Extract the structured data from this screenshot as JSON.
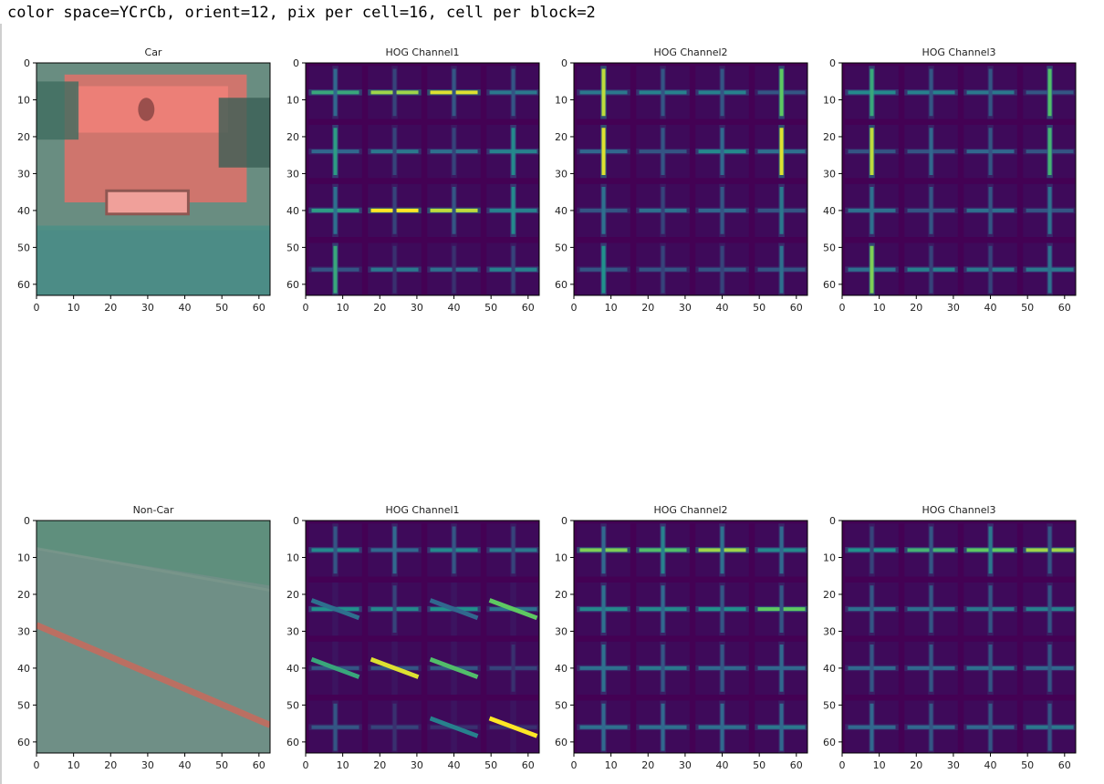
{
  "header": {
    "params_text": "color space=YCrCb, orient=12, pix per cell=16, cell per block=2"
  },
  "colors": {
    "viridis_dark": "#440154",
    "viridis_bg": "#3e0b5b",
    "viridis_blue": "#31688e",
    "viridis_teal": "#21918c",
    "viridis_green": "#5ec962",
    "viridis_yellow": "#fde725",
    "car_body": "#e2716a",
    "car_road": "#4f8f85",
    "noncar_bg": "#6f8f86",
    "noncar_line": "#c96a5c"
  },
  "chart_data": [
    {
      "type": "heatmap",
      "title": "Car",
      "image": "car-photo",
      "xlim": [
        0,
        63
      ],
      "ylim": [
        63,
        0
      ],
      "xticks": [
        0,
        10,
        20,
        30,
        40,
        50,
        60
      ],
      "yticks": [
        0,
        10,
        20,
        30,
        40,
        50,
        60
      ]
    },
    {
      "type": "heatmap",
      "title": "HOG Channel1",
      "image": "hog",
      "xlim": [
        0,
        63
      ],
      "ylim": [
        63,
        0
      ],
      "xticks": [
        0,
        10,
        20,
        30,
        40,
        50,
        60
      ],
      "yticks": [
        0,
        10,
        20,
        30,
        40,
        50,
        60
      ],
      "cells": [
        {
          "h": 0.6,
          "v": 0.25
        },
        {
          "h": 0.85,
          "v": 0.15
        },
        {
          "h": 0.95,
          "v": 0.2
        },
        {
          "h": 0.35,
          "v": 0.2
        },
        {
          "h": 0.25,
          "v": 0.55
        },
        {
          "h": 0.35,
          "v": 0.15
        },
        {
          "h": 0.3,
          "v": 0.15
        },
        {
          "h": 0.4,
          "v": 0.45
        },
        {
          "h": 0.55,
          "v": 0.3
        },
        {
          "h": 1.0,
          "v": 0.15
        },
        {
          "h": 0.9,
          "v": 0.2
        },
        {
          "h": 0.4,
          "v": 0.45
        },
        {
          "h": 0.2,
          "v": 0.6
        },
        {
          "h": 0.35,
          "v": 0.1
        },
        {
          "h": 0.3,
          "v": 0.1
        },
        {
          "h": 0.4,
          "v": 0.15
        }
      ]
    },
    {
      "type": "heatmap",
      "title": "HOG Channel2",
      "image": "hog",
      "xlim": [
        0,
        63
      ],
      "ylim": [
        63,
        0
      ],
      "xticks": [
        0,
        10,
        20,
        30,
        40,
        50,
        60
      ],
      "yticks": [
        0,
        10,
        20,
        30,
        40,
        50,
        60
      ],
      "cells": [
        {
          "h": 0.35,
          "v": 0.9
        },
        {
          "h": 0.4,
          "v": 0.2
        },
        {
          "h": 0.4,
          "v": 0.2
        },
        {
          "h": 0.2,
          "v": 0.75
        },
        {
          "h": 0.25,
          "v": 0.95
        },
        {
          "h": 0.2,
          "v": 0.2
        },
        {
          "h": 0.45,
          "v": 0.25
        },
        {
          "h": 0.3,
          "v": 0.95
        },
        {
          "h": 0.2,
          "v": 0.3
        },
        {
          "h": 0.3,
          "v": 0.15
        },
        {
          "h": 0.25,
          "v": 0.2
        },
        {
          "h": 0.2,
          "v": 0.35
        },
        {
          "h": 0.2,
          "v": 0.5
        },
        {
          "h": 0.2,
          "v": 0.15
        },
        {
          "h": 0.2,
          "v": 0.15
        },
        {
          "h": 0.2,
          "v": 0.3
        }
      ]
    },
    {
      "type": "heatmap",
      "title": "HOG Channel3",
      "image": "hog",
      "xlim": [
        0,
        63
      ],
      "ylim": [
        63,
        0
      ],
      "xticks": [
        0,
        10,
        20,
        30,
        40,
        50,
        60
      ],
      "yticks": [
        0,
        10,
        20,
        30,
        40,
        50,
        60
      ],
      "cells": [
        {
          "h": 0.45,
          "v": 0.6
        },
        {
          "h": 0.4,
          "v": 0.2
        },
        {
          "h": 0.35,
          "v": 0.2
        },
        {
          "h": 0.2,
          "v": 0.7
        },
        {
          "h": 0.2,
          "v": 0.9
        },
        {
          "h": 0.2,
          "v": 0.25
        },
        {
          "h": 0.25,
          "v": 0.2
        },
        {
          "h": 0.2,
          "v": 0.65
        },
        {
          "h": 0.3,
          "v": 0.3
        },
        {
          "h": 0.2,
          "v": 0.2
        },
        {
          "h": 0.3,
          "v": 0.2
        },
        {
          "h": 0.2,
          "v": 0.3
        },
        {
          "h": 0.3,
          "v": 0.8
        },
        {
          "h": 0.4,
          "v": 0.15
        },
        {
          "h": 0.35,
          "v": 0.15
        },
        {
          "h": 0.35,
          "v": 0.3
        }
      ]
    },
    {
      "type": "heatmap",
      "title": "Non-Car",
      "image": "noncar-photo",
      "xlim": [
        0,
        63
      ],
      "ylim": [
        63,
        0
      ],
      "xticks": [
        0,
        10,
        20,
        30,
        40,
        50,
        60
      ],
      "yticks": [
        0,
        10,
        20,
        30,
        40,
        50,
        60
      ]
    },
    {
      "type": "heatmap",
      "title": "HOG Channel1",
      "image": "hog",
      "xlim": [
        0,
        63
      ],
      "ylim": [
        63,
        0
      ],
      "xticks": [
        0,
        10,
        20,
        30,
        40,
        50,
        60
      ],
      "yticks": [
        0,
        10,
        20,
        30,
        40,
        50,
        60
      ],
      "cells": [
        {
          "h": 0.45,
          "v": 0.2
        },
        {
          "h": 0.25,
          "v": 0.25
        },
        {
          "h": 0.45,
          "v": 0.2
        },
        {
          "h": 0.35,
          "v": 0.15
        },
        {
          "h": 0.5,
          "d": 0.3
        },
        {
          "h": 0.45,
          "v": 0.15
        },
        {
          "h": 0.5,
          "d": 0.25
        },
        {
          "h": 0.3,
          "d": 0.75
        },
        {
          "h": 0.2,
          "d": 0.6
        },
        {
          "h": 0.2,
          "d": 0.95
        },
        {
          "h": 0.2,
          "d": 0.7
        },
        {
          "h": 0.15,
          "v": 0.1
        },
        {
          "h": 0.2,
          "v": 0.2
        },
        {
          "h": 0.15,
          "v": 0.1
        },
        {
          "h": 0.1,
          "d": 0.4
        },
        {
          "h": 0.1,
          "d": 1.0
        }
      ]
    },
    {
      "type": "heatmap",
      "title": "HOG Channel2",
      "image": "hog",
      "xlim": [
        0,
        63
      ],
      "ylim": [
        63,
        0
      ],
      "xticks": [
        0,
        10,
        20,
        30,
        40,
        50,
        60
      ],
      "yticks": [
        0,
        10,
        20,
        30,
        40,
        50,
        60
      ],
      "cells": [
        {
          "h": 0.8,
          "v": 0.25
        },
        {
          "h": 0.7,
          "v": 0.4
        },
        {
          "h": 0.85,
          "v": 0.3
        },
        {
          "h": 0.45,
          "v": 0.25
        },
        {
          "h": 0.45,
          "v": 0.3
        },
        {
          "h": 0.45,
          "v": 0.25
        },
        {
          "h": 0.5,
          "v": 0.2
        },
        {
          "h": 0.75,
          "v": 0.2
        },
        {
          "h": 0.3,
          "v": 0.3
        },
        {
          "h": 0.35,
          "v": 0.2
        },
        {
          "h": 0.25,
          "v": 0.2
        },
        {
          "h": 0.25,
          "v": 0.25
        },
        {
          "h": 0.3,
          "v": 0.25
        },
        {
          "h": 0.3,
          "v": 0.25
        },
        {
          "h": 0.3,
          "v": 0.25
        },
        {
          "h": 0.35,
          "v": 0.25
        }
      ]
    },
    {
      "type": "heatmap",
      "title": "HOG Channel3",
      "image": "hog",
      "xlim": [
        0,
        63
      ],
      "ylim": [
        63,
        0
      ],
      "xticks": [
        0,
        10,
        20,
        30,
        40,
        50,
        60
      ],
      "yticks": [
        0,
        10,
        20,
        30,
        40,
        50,
        60
      ],
      "cells": [
        {
          "h": 0.5,
          "v": 0.15
        },
        {
          "h": 0.65,
          "v": 0.2
        },
        {
          "h": 0.75,
          "v": 0.35
        },
        {
          "h": 0.85,
          "v": 0.2
        },
        {
          "h": 0.3,
          "v": 0.2
        },
        {
          "h": 0.3,
          "v": 0.2
        },
        {
          "h": 0.35,
          "v": 0.2
        },
        {
          "h": 0.4,
          "v": 0.2
        },
        {
          "h": 0.25,
          "v": 0.2
        },
        {
          "h": 0.25,
          "v": 0.2
        },
        {
          "h": 0.3,
          "v": 0.2
        },
        {
          "h": 0.25,
          "v": 0.2
        },
        {
          "h": 0.25,
          "v": 0.25
        },
        {
          "h": 0.25,
          "v": 0.2
        },
        {
          "h": 0.25,
          "v": 0.2
        },
        {
          "h": 0.35,
          "v": 0.2
        }
      ]
    }
  ]
}
